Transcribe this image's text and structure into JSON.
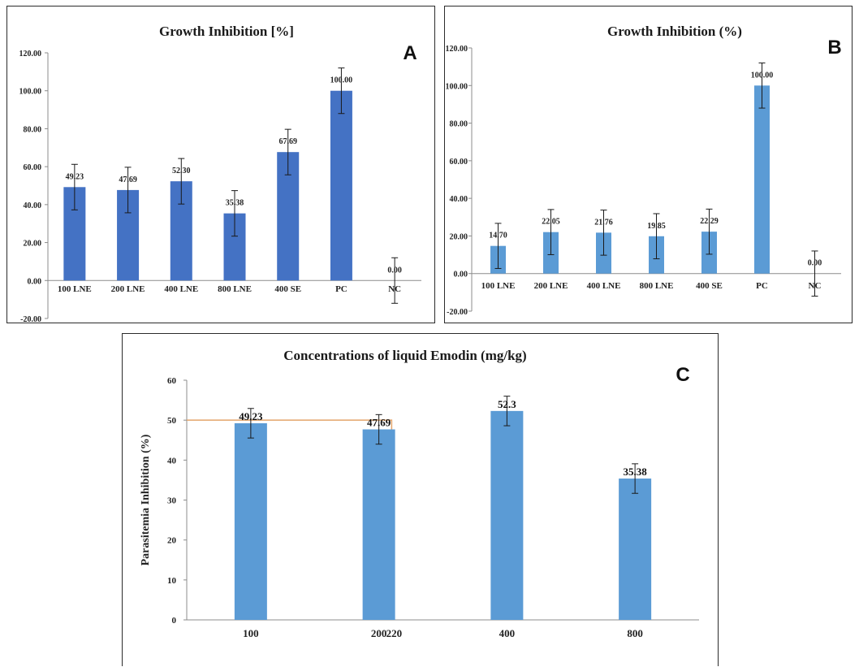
{
  "chart_data": [
    {
      "id": "A",
      "type": "bar",
      "panel_letter": "A",
      "title": "Growth Inhibition [%]",
      "categories": [
        "100 LNE",
        "200  LNE",
        "400 LNE",
        "800  LNE",
        "400 SE",
        "PC",
        "NC"
      ],
      "values": [
        49.23,
        47.69,
        52.3,
        35.38,
        67.69,
        100.0,
        0.0
      ],
      "value_labels": [
        "49.23",
        "47.69",
        "52.30",
        "35.38",
        "67.69",
        "100.00",
        "0.00"
      ],
      "error": 12,
      "ylim": [
        -20,
        120
      ],
      "yticks": [
        -20,
        0,
        20,
        40,
        60,
        80,
        100,
        120
      ],
      "ytick_labels": [
        "-20.00",
        "0.00",
        "20.00",
        "40.00",
        "60.00",
        "80.00",
        "100.00",
        "120.00"
      ],
      "bar_color": "#4472c4",
      "grid": false
    },
    {
      "id": "B",
      "type": "bar",
      "panel_letter": "B",
      "title": "Growth Inhibition (%)",
      "categories": [
        "100  LNE",
        "200 LNE",
        "400 LNE",
        "800 LNE",
        "400  SE",
        "PC",
        "NC"
      ],
      "values": [
        14.7,
        22.05,
        21.76,
        19.85,
        22.29,
        100.0,
        0.0
      ],
      "value_labels": [
        "14.70",
        "22.05",
        "21.76",
        "19.85",
        "22.29",
        "100.00",
        "0.00"
      ],
      "error": 12,
      "ylim": [
        -20,
        120
      ],
      "yticks": [
        -20,
        0,
        20,
        40,
        60,
        80,
        100,
        120
      ],
      "ytick_labels": [
        "-20.00",
        "0.00",
        "20.00",
        "40.00",
        "60.00",
        "80.00",
        "100.00",
        "120.00"
      ],
      "bar_color": "#5b9bd5",
      "grid": false
    },
    {
      "id": "C",
      "type": "bar",
      "panel_letter": "C",
      "title": "Concentrations of liquid Emodin (mg/kg)",
      "ylabel": "Parasitemia Inhibition (%)",
      "categories": [
        "100",
        "200",
        "400",
        "800"
      ],
      "values": [
        49.23,
        47.69,
        52.3,
        35.38
      ],
      "value_labels": [
        "49.23",
        "47.69",
        "52.3",
        "35.38"
      ],
      "error": 3.7,
      "ylim": [
        0,
        60
      ],
      "yticks": [
        0,
        10,
        20,
        30,
        40,
        50,
        60
      ],
      "ytick_labels": [
        "0",
        "10",
        "20",
        "30",
        "40",
        "50",
        "60"
      ],
      "bar_color": "#5b9bd5",
      "grid": false,
      "annotation": {
        "y_value": 50,
        "x_value": 220,
        "x_label": "220",
        "color": "#e3a56b"
      }
    }
  ]
}
